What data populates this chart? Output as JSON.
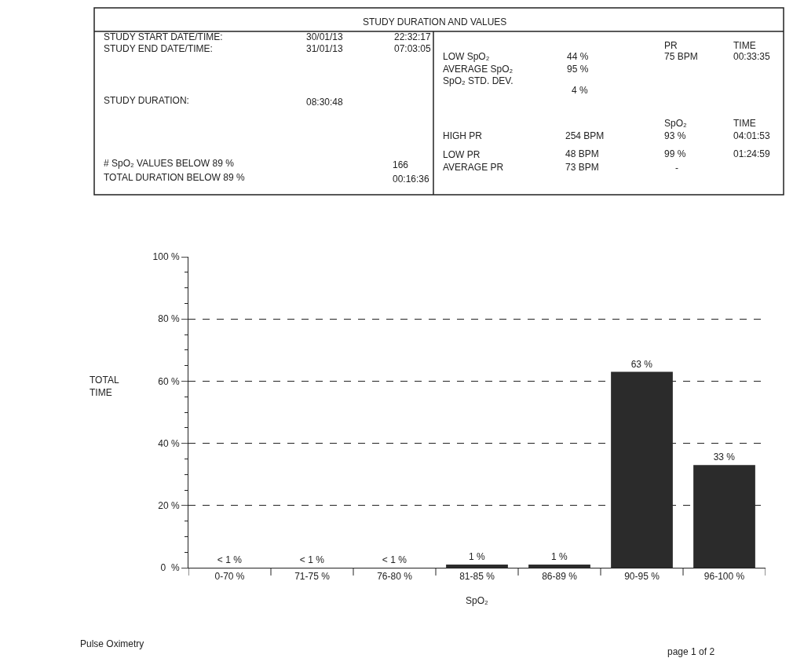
{
  "chart_data": {
    "type": "bar",
    "xlabel": "SpO₂",
    "ylabel": "TOTAL TIME",
    "categories": [
      "0-70 %",
      "71-75 %",
      "76-80 %",
      "81-85 %",
      "86-89 %",
      "90-95 %",
      "96-100 %"
    ],
    "values": [
      0,
      0,
      0,
      1,
      1,
      63,
      33
    ],
    "value_labels": [
      "< 1 %",
      "< 1 %",
      "< 1 %",
      "1 %",
      "1 %",
      "63 %",
      "33 %"
    ],
    "color": "#2b2b2b",
    "ylim": [
      0,
      100
    ],
    "yticks": [
      {
        "value": 0,
        "label": "0  %"
      },
      {
        "value": 20,
        "label": "20 %"
      },
      {
        "value": 40,
        "label": "40 %"
      },
      {
        "value": 60,
        "label": "60 %"
      },
      {
        "value": 80,
        "label": "80 %"
      },
      {
        "value": 100,
        "label": "100 %"
      }
    ],
    "grid": "y",
    "line_style": "dashed",
    "legend": false,
    "annotations": [
      "STUDY DURATION AND VALUES",
      "STUDY START DATE/TIME:",
      "30/01/13",
      "22:32:17",
      "STUDY END DATE/TIME:",
      "31/01/13",
      "07:03:05",
      "STUDY DURATION:",
      "08:30:48",
      "# SpO₂ VALUES BELOW 89 %",
      "166",
      "TOTAL DURATION BELOW 89 %",
      "00:16:36",
      "PR",
      "TIME",
      "LOW SpO₂",
      "44 %",
      "75 BPM",
      "00:33:35",
      "AVERAGE SpO₂",
      "95 %",
      "SpO₂ STD. DEV.",
      "4 %",
      "SpO₂",
      "TIME",
      "HIGH PR",
      "254 BPM",
      "93 %",
      "04:01:53",
      "LOW PR",
      "48 BPM",
      "99 %",
      "01:24:59",
      "AVERAGE PR",
      "73 BPM",
      "-",
      "Pulse Oximetry",
      "page 1 of 2"
    ]
  }
}
